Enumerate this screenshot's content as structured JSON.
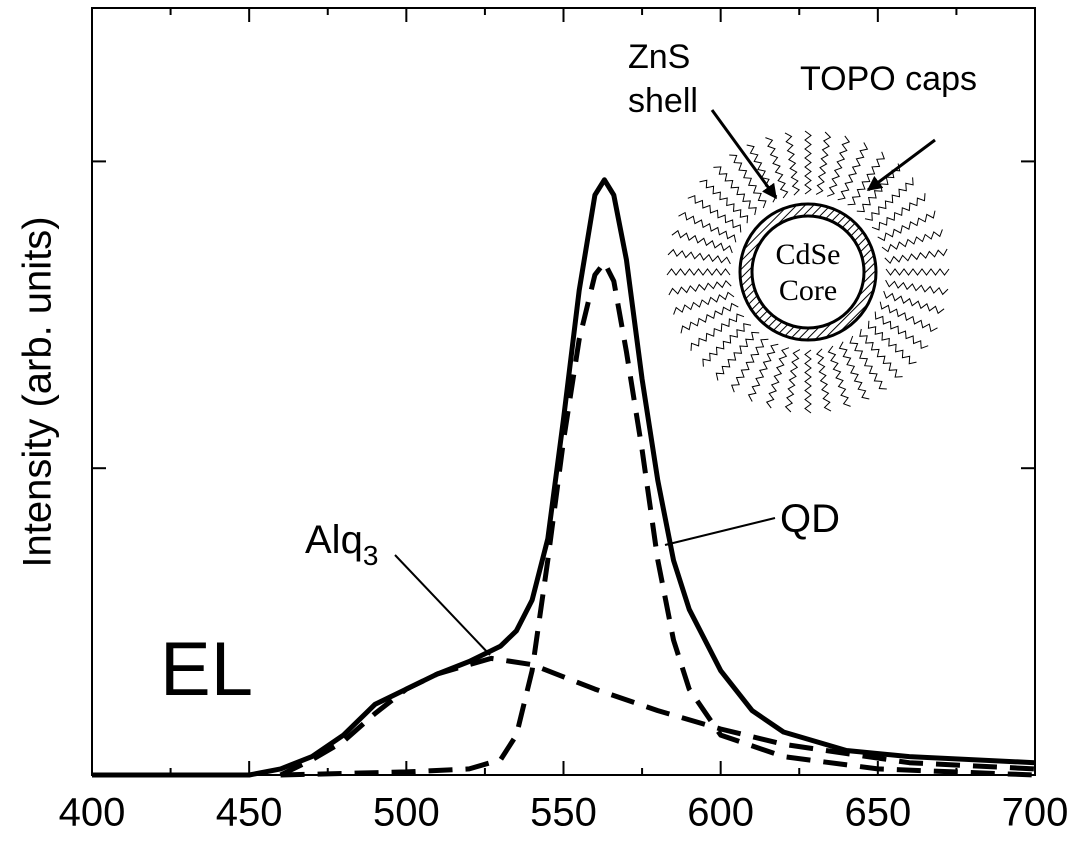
{
  "chart_data": {
    "type": "line",
    "y_label": "Intensity (arb. units)",
    "xlim": [
      400,
      700
    ],
    "xticks": [
      400,
      450,
      500,
      550,
      600,
      650,
      700
    ],
    "ylim": [
      0,
      2.5
    ],
    "yticks": [
      0,
      1,
      2
    ],
    "series": [
      {
        "style": "solid",
        "color": "#000000",
        "x": [
          400,
          450,
          460,
          470,
          480,
          490,
          500,
          510,
          520,
          530,
          535,
          540,
          545,
          550,
          555,
          560,
          563,
          566,
          570,
          575,
          580,
          585,
          590,
          600,
          610,
          620,
          640,
          660,
          700
        ],
        "values": [
          0,
          0,
          0.02,
          0.06,
          0.13,
          0.23,
          0.28,
          0.33,
          0.37,
          0.42,
          0.47,
          0.57,
          0.77,
          1.16,
          1.58,
          1.89,
          1.94,
          1.89,
          1.68,
          1.29,
          0.96,
          0.7,
          0.54,
          0.34,
          0.21,
          0.14,
          0.08,
          0.06,
          0.04
        ]
      },
      {
        "style": "dashed",
        "color": "#000000",
        "x": [
          460,
          470,
          480,
          490,
          500,
          510,
          520,
          527,
          540,
          560,
          580,
          600,
          620,
          640,
          660,
          700
        ],
        "values": [
          0,
          0.05,
          0.11,
          0.2,
          0.28,
          0.33,
          0.36,
          0.38,
          0.36,
          0.28,
          0.21,
          0.15,
          0.1,
          0.07,
          0.04,
          0.02
        ]
      },
      {
        "style": "dashed",
        "color": "#000000",
        "x": [
          460,
          500,
          520,
          530,
          535,
          540,
          545,
          550,
          555,
          560,
          563,
          566,
          570,
          575,
          580,
          585,
          590,
          600,
          620,
          650,
          700
        ],
        "values": [
          0,
          0.01,
          0.02,
          0.05,
          0.13,
          0.34,
          0.7,
          1.09,
          1.42,
          1.63,
          1.67,
          1.61,
          1.38,
          1.06,
          0.7,
          0.44,
          0.28,
          0.13,
          0.06,
          0.02,
          0
        ]
      }
    ],
    "annotations": {
      "el": "EL",
      "qd": "QD",
      "alq": {
        "text": "Alq",
        "subscript": "3"
      },
      "zns": "ZnS",
      "shell": "shell",
      "topo": "TOPO caps",
      "cdse": "CdSe",
      "core": "Core"
    }
  }
}
